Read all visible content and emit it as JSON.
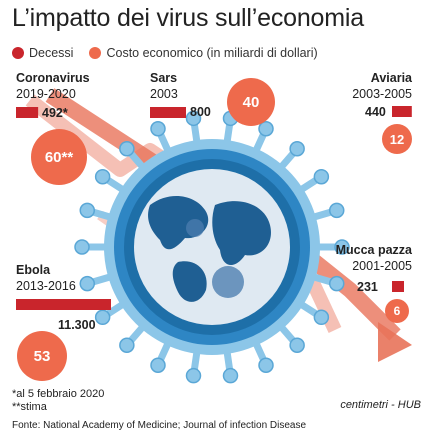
{
  "title": "L’impatto dei virus sull’economia",
  "legend": {
    "deaths_label": "Decessi",
    "cost_label": "Costo economico (in miliardi di dollari)"
  },
  "colors": {
    "deaths": "#c9252c",
    "cost": "#ee6a4c",
    "arrow": "#e8735a",
    "globe_ring": "#1e6fa8",
    "virus_body": "#8cc6e8"
  },
  "chart_data": {
    "type": "bar",
    "series": [
      {
        "name": "Decessi",
        "values": [
          492,
          800,
          440,
          231,
          11300
        ]
      },
      {
        "name": "Costo economico (in miliardi di dollari)",
        "values": [
          60,
          40,
          12,
          6,
          53
        ]
      }
    ],
    "categories": [
      "Coronavirus",
      "Sars",
      "Aviaria",
      "Mucca pazza",
      "Ebola"
    ],
    "periods": [
      "2019-2020",
      "2003",
      "2003-2005",
      "2001-2005",
      "2013-2016"
    ],
    "death_labels": [
      "492*",
      "800",
      "440",
      "231",
      "11.300"
    ],
    "cost_labels": [
      "60**",
      "40",
      "12",
      "6",
      "53"
    ]
  },
  "footnotes": {
    "note1": "*al 5 febbraio 2020",
    "note2": "**stima",
    "source": "Fonte: National Academy of Medicine; Journal of infection Disease"
  },
  "brand": "centimetri - HUB"
}
